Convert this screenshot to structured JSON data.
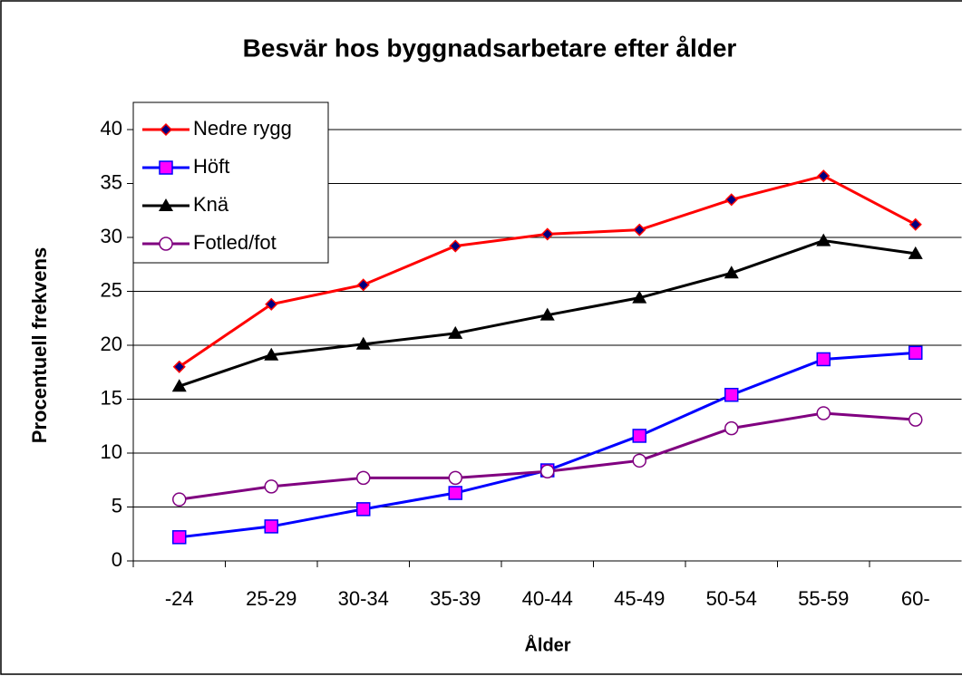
{
  "chart_data": {
    "type": "line",
    "title": "Besvär hos byggnadsarbetare efter ålder",
    "xlabel": "Ålder",
    "ylabel": "Procentuell frekvens",
    "categories": [
      "-24",
      "25-29",
      "30-34",
      "35-39",
      "40-44",
      "45-49",
      "50-54",
      "55-59",
      "60-"
    ],
    "series": [
      {
        "name": "Nedre rygg",
        "color": "#ff0000",
        "marker": "diamond",
        "values": [
          18,
          23.8,
          25.6,
          29.2,
          30.3,
          30.7,
          33.5,
          35.7,
          31.2
        ]
      },
      {
        "name": "Höft",
        "color": "#0000ff",
        "marker": "square",
        "values": [
          2.2,
          3.2,
          4.8,
          6.3,
          8.4,
          11.6,
          15.4,
          18.7,
          19.3
        ]
      },
      {
        "name": "Knä",
        "color": "#000000",
        "marker": "triangle",
        "values": [
          16.2,
          19.1,
          20.1,
          21.1,
          22.8,
          24.4,
          26.7,
          29.7,
          28.5
        ]
      },
      {
        "name": "Fotled/fot",
        "color": "#800080",
        "marker": "circle",
        "values": [
          5.7,
          6.9,
          7.7,
          7.7,
          8.3,
          9.3,
          12.3,
          13.7,
          13.1
        ]
      }
    ],
    "ylim": [
      0,
      40
    ],
    "yticks": [
      0,
      5,
      10,
      15,
      20,
      25,
      30,
      35,
      40
    ],
    "grid": true,
    "legend": "upper left"
  }
}
